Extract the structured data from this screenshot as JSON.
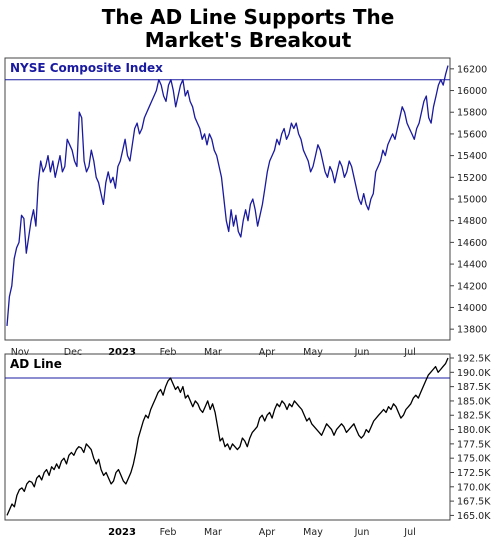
{
  "title_line1": "The AD Line Supports The",
  "title_line2": "Market's Breakout",
  "chart_data": [
    {
      "type": "line",
      "title": "NYSE Composite Index",
      "color": "#1a1aa0",
      "ylim": [
        13700,
        16300
      ],
      "yticks": [
        13800,
        14000,
        14200,
        14400,
        14600,
        14800,
        15000,
        15200,
        15400,
        15600,
        15800,
        16000,
        16200
      ],
      "reference_line": 16100,
      "x_labels": [
        "Nov",
        "Dec",
        "2023",
        "Feb",
        "Mar",
        "Apr",
        "May",
        "Jun",
        "Jul"
      ],
      "values": [
        13830,
        14100,
        14200,
        14450,
        14550,
        14600,
        14850,
        14820,
        14500,
        14650,
        14800,
        14900,
        14750,
        15150,
        15350,
        15250,
        15300,
        15400,
        15250,
        15350,
        15200,
        15300,
        15400,
        15250,
        15300,
        15550,
        15500,
        15450,
        15350,
        15300,
        15800,
        15750,
        15350,
        15250,
        15300,
        15450,
        15350,
        15200,
        15150,
        15050,
        14950,
        15150,
        15250,
        15150,
        15200,
        15100,
        15300,
        15350,
        15450,
        15550,
        15400,
        15350,
        15500,
        15650,
        15700,
        15600,
        15650,
        15750,
        15800,
        15850,
        15900,
        15950,
        16000,
        16100,
        16050,
        15950,
        15900,
        16050,
        16100,
        16000,
        15850,
        15950,
        16050,
        16100,
        15950,
        16000,
        15900,
        15850,
        15750,
        15700,
        15650,
        15550,
        15600,
        15500,
        15600,
        15550,
        15450,
        15400,
        15300,
        15200,
        15000,
        14800,
        14700,
        14900,
        14750,
        14850,
        14700,
        14650,
        14800,
        14900,
        14800,
        14950,
        15000,
        14900,
        14750,
        14850,
        14950,
        15100,
        15250,
        15350,
        15400,
        15450,
        15550,
        15500,
        15600,
        15650,
        15550,
        15600,
        15700,
        15650,
        15700,
        15600,
        15550,
        15450,
        15400,
        15350,
        15250,
        15300,
        15400,
        15500,
        15450,
        15350,
        15250,
        15200,
        15300,
        15250,
        15150,
        15250,
        15350,
        15300,
        15200,
        15250,
        15350,
        15300,
        15200,
        15100,
        15000,
        14950,
        15050,
        14950,
        14900,
        15000,
        15050,
        15250,
        15300,
        15350,
        15450,
        15400,
        15500,
        15550,
        15600,
        15550,
        15650,
        15750,
        15850,
        15800,
        15700,
        15650,
        15600,
        15550,
        15650,
        15700,
        15800,
        15900,
        15950,
        15750,
        15700,
        15850,
        15950,
        16050,
        16100,
        16050,
        16150,
        16230
      ]
    },
    {
      "type": "line",
      "title": "AD Line",
      "color": "#000000",
      "ylim": [
        164200,
        193200
      ],
      "yticks": [
        "165.0K",
        "167.5K",
        "170.0K",
        "172.5K",
        "175.0K",
        "177.5K",
        "180.0K",
        "182.5K",
        "185.0K",
        "187.5K",
        "190.0K",
        "192.5K"
      ],
      "ytick_values": [
        165000,
        167500,
        170000,
        172500,
        175000,
        177500,
        180000,
        182500,
        185000,
        187500,
        190000,
        192500
      ],
      "reference_line": 189000,
      "x_labels": [
        "2023",
        "Feb",
        "Mar",
        "Apr",
        "May",
        "Jun",
        "Jul"
      ],
      "values": [
        165000,
        166000,
        167000,
        166500,
        168500,
        169500,
        169800,
        169200,
        170500,
        171000,
        170800,
        170000,
        171500,
        172000,
        171200,
        172500,
        173000,
        172000,
        173500,
        173000,
        174000,
        173200,
        174500,
        175000,
        174000,
        175500,
        176000,
        175500,
        176500,
        177000,
        176800,
        176000,
        177500,
        177000,
        176500,
        175000,
        174000,
        174800,
        173000,
        172000,
        172500,
        171500,
        170500,
        171000,
        172500,
        173000,
        172000,
        171000,
        170500,
        171500,
        172500,
        174000,
        176000,
        178500,
        180000,
        181500,
        182500,
        182000,
        183500,
        184500,
        185500,
        186500,
        187000,
        186000,
        187500,
        188500,
        189000,
        188000,
        187000,
        187500,
        186500,
        187500,
        185500,
        186000,
        185000,
        184000,
        185000,
        184500,
        183500,
        183000,
        184000,
        185000,
        183500,
        184500,
        183000,
        180500,
        178000,
        178500,
        177000,
        177500,
        176500,
        177500,
        177000,
        176500,
        177000,
        178500,
        178000,
        177000,
        178500,
        179500,
        180000,
        180500,
        182000,
        182500,
        181500,
        182500,
        183000,
        182000,
        183500,
        184500,
        184000,
        185000,
        184500,
        183500,
        184500,
        184000,
        185000,
        184500,
        184000,
        183500,
        182500,
        181500,
        182000,
        181000,
        180500,
        180000,
        179500,
        179000,
        180000,
        181000,
        180500,
        180000,
        179000,
        180000,
        180500,
        181000,
        180500,
        179500,
        180000,
        180500,
        181000,
        180000,
        179000,
        178500,
        179000,
        180000,
        179500,
        180500,
        181500,
        182000,
        182500,
        183000,
        183500,
        183000,
        184000,
        183500,
        184500,
        184000,
        183000,
        182000,
        182500,
        183500,
        184000,
        184500,
        185500,
        186000,
        185500,
        186500,
        187500,
        188500,
        189500,
        190000,
        190500,
        191000,
        190000,
        190500,
        191000,
        191500,
        192500
      ]
    }
  ]
}
